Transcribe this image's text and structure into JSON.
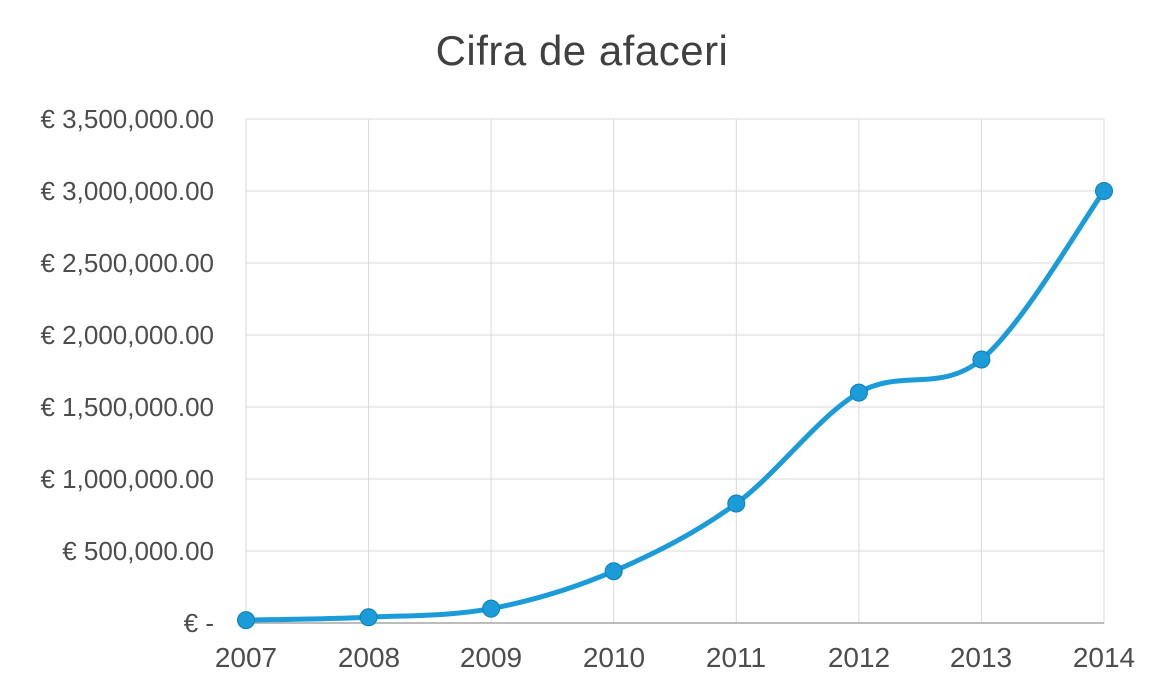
{
  "chart_data": {
    "type": "line",
    "title": "Cifra de afaceri",
    "categories": [
      "2007",
      "2008",
      "2009",
      "2010",
      "2011",
      "2012",
      "2013",
      "2014"
    ],
    "series": [
      {
        "name": "Cifra de afaceri",
        "values": [
          20000,
          40000,
          100000,
          360000,
          830000,
          1600000,
          1830000,
          3000000
        ]
      }
    ],
    "xlabel": "",
    "ylabel": "",
    "ylim": [
      0,
      3500000
    ],
    "y_tick_step": 500000,
    "y_tick_labels": [
      "€ 3,500,000.00",
      "€ 3,000,000.00",
      "€ 2,500,000.00",
      "€ 2,000,000.00",
      "€ 1,500,000.00",
      "€ 1,000,000.00",
      "€ 500,000.00",
      "€ -"
    ],
    "currency_symbol": "€",
    "grid": true,
    "legend": "none",
    "line_style": "smooth",
    "marker": "circle",
    "colors": {
      "line": "#1b9bd8",
      "marker": "#1b9bd8",
      "marker_edge": "#0e7fb5",
      "gridline": "#d9d9d9",
      "axis_line": "#a6a6a6",
      "title_text": "#404040",
      "tick_text": "#4d4d4d",
      "background": "#ffffff"
    }
  }
}
